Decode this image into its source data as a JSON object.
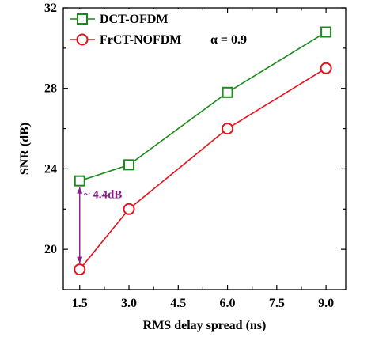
{
  "chart_data": {
    "type": "line",
    "title": "",
    "xlabel": "RMS delay spread (ns)",
    "ylabel": "SNR (dB)",
    "xlim": [
      1.0,
      9.6
    ],
    "ylim": [
      18.0,
      32.0
    ],
    "x_ticks": [
      1.5,
      3.0,
      4.5,
      6.0,
      7.5,
      9.0
    ],
    "x_tick_labels": [
      "1.5",
      "3.0",
      "4.5",
      "6.0",
      "7.5",
      "9.0"
    ],
    "y_ticks": [
      20,
      24,
      28,
      32
    ],
    "y_tick_labels": [
      "20",
      "24",
      "28",
      "32"
    ],
    "grid": false,
    "legend_position": "top-left",
    "series": [
      {
        "name": "DCT-OFDM",
        "marker": "square",
        "color": "#1a8a1a",
        "x": [
          1.5,
          3.0,
          6.0,
          9.0
        ],
        "y": [
          23.4,
          24.2,
          27.8,
          30.8
        ]
      },
      {
        "name": "FrCT-NOFDM",
        "marker": "circle",
        "color": "#e8101a",
        "x": [
          1.5,
          3.0,
          6.0,
          9.0
        ],
        "y": [
          19.0,
          22.0,
          26.0,
          29.0
        ]
      }
    ],
    "legend_note": "α = 0.9",
    "annotations": [
      {
        "text": "~ 4.4dB",
        "color": "#8a1a8a",
        "x": 1.5,
        "y_from": 23.4,
        "y_to": 19.0
      }
    ]
  }
}
